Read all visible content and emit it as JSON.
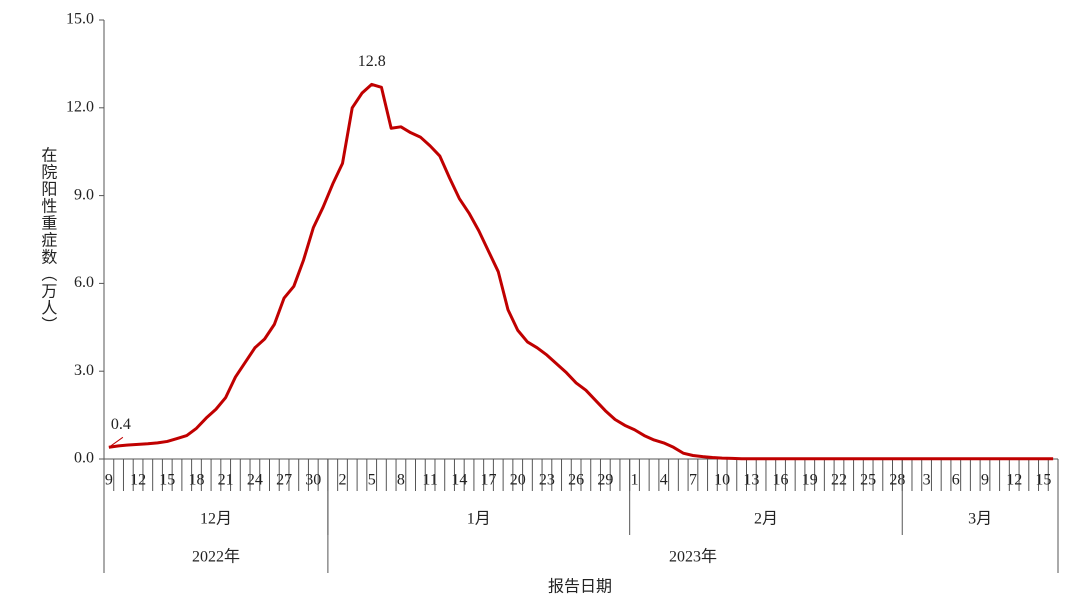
{
  "chart_data": {
    "type": "line",
    "y_label": "在院阳性重症数（万人）",
    "x_label": "报告日期",
    "x": [
      "2022-12-09",
      "2022-12-10",
      "2022-12-11",
      "2022-12-12",
      "2022-12-13",
      "2022-12-14",
      "2022-12-15",
      "2022-12-16",
      "2022-12-17",
      "2022-12-18",
      "2022-12-19",
      "2022-12-20",
      "2022-12-21",
      "2022-12-22",
      "2022-12-23",
      "2022-12-24",
      "2022-12-25",
      "2022-12-26",
      "2022-12-27",
      "2022-12-28",
      "2022-12-29",
      "2022-12-30",
      "2022-12-31",
      "2023-01-01",
      "2023-01-02",
      "2023-01-03",
      "2023-01-04",
      "2023-01-05",
      "2023-01-06",
      "2023-01-07",
      "2023-01-08",
      "2023-01-09",
      "2023-01-10",
      "2023-01-11",
      "2023-01-12",
      "2023-01-13",
      "2023-01-14",
      "2023-01-15",
      "2023-01-16",
      "2023-01-17",
      "2023-01-18",
      "2023-01-19",
      "2023-01-20",
      "2023-01-21",
      "2023-01-22",
      "2023-01-23",
      "2023-01-24",
      "2023-01-25",
      "2023-01-26",
      "2023-01-27",
      "2023-01-28",
      "2023-01-29",
      "2023-01-30",
      "2023-01-31",
      "2023-02-01",
      "2023-02-02",
      "2023-02-03",
      "2023-02-04",
      "2023-02-05",
      "2023-02-06",
      "2023-02-07",
      "2023-02-08",
      "2023-02-09",
      "2023-02-10",
      "2023-02-11",
      "2023-02-12",
      "2023-02-13",
      "2023-02-14",
      "2023-02-15",
      "2023-02-16",
      "2023-02-17",
      "2023-02-18",
      "2023-02-19",
      "2023-02-20",
      "2023-02-21",
      "2023-02-22",
      "2023-02-23",
      "2023-02-24",
      "2023-02-25",
      "2023-02-26",
      "2023-02-27",
      "2023-02-28",
      "2023-03-01",
      "2023-03-02",
      "2023-03-03",
      "2023-03-04",
      "2023-03-05",
      "2023-03-06",
      "2023-03-07",
      "2023-03-08",
      "2023-03-09",
      "2023-03-10",
      "2023-03-11",
      "2023-03-12",
      "2023-03-13",
      "2023-03-14",
      "2023-03-15",
      "2023-03-16"
    ],
    "series": [
      {
        "color": "#c00000",
        "values": [
          0.4,
          0.45,
          0.48,
          0.5,
          0.52,
          0.55,
          0.6,
          0.7,
          0.8,
          1.05,
          1.4,
          1.7,
          2.1,
          2.8,
          3.3,
          3.8,
          4.1,
          4.6,
          5.5,
          5.9,
          6.8,
          7.9,
          8.6,
          9.4,
          10.1,
          12.0,
          12.5,
          12.8,
          12.7,
          11.3,
          11.35,
          11.15,
          11.0,
          10.7,
          10.35,
          9.6,
          8.9,
          8.4,
          7.8,
          7.1,
          6.4,
          5.1,
          4.4,
          4.0,
          3.8,
          3.55,
          3.25,
          2.95,
          2.6,
          2.35,
          2.0,
          1.65,
          1.35,
          1.15,
          1.0,
          0.8,
          0.65,
          0.55,
          0.4,
          0.2,
          0.12,
          0.08,
          0.05,
          0.03,
          0.02,
          0.01,
          0.01,
          0.01,
          0.01,
          0.01,
          0.01,
          0.01,
          0.01,
          0.01,
          0.01,
          0.01,
          0.01,
          0.01,
          0.01,
          0.01,
          0.01,
          0.01,
          0.01,
          0.01,
          0.01,
          0.01,
          0.01,
          0.01,
          0.01,
          0.01,
          0.01,
          0.01,
          0.01,
          0.01,
          0.01,
          0.01,
          0.01,
          0.01
        ],
        "value_labels": [
          "0.4",
          null,
          null,
          null,
          null,
          null,
          null,
          null,
          null,
          null,
          null,
          null,
          null,
          null,
          null,
          null,
          null,
          null,
          null,
          null,
          null,
          null,
          null,
          null,
          null,
          null,
          null,
          "12.8",
          null,
          null,
          null,
          null,
          null,
          null,
          null,
          null,
          null,
          null,
          null,
          null,
          null,
          null,
          null,
          null,
          null,
          null,
          null,
          null,
          null,
          null,
          null,
          null,
          null,
          null,
          null,
          null,
          null,
          null,
          null,
          null,
          null,
          null,
          null,
          null,
          null,
          null,
          null,
          null,
          null,
          null,
          null,
          null,
          null,
          null,
          null,
          null,
          null,
          null,
          null,
          null,
          null,
          null,
          null,
          null,
          null,
          null,
          null,
          null,
          null,
          null,
          null,
          null,
          null,
          null,
          null,
          null,
          null,
          null
        ]
      }
    ],
    "xticks": [
      {
        "value": "2022-12-09",
        "label": "9"
      },
      {
        "value": "2022-12-12",
        "label": "12"
      },
      {
        "value": "2022-12-15",
        "label": "15"
      },
      {
        "value": "2022-12-18",
        "label": "18"
      },
      {
        "value": "2022-12-21",
        "label": "21"
      },
      {
        "value": "2022-12-24",
        "label": "24"
      },
      {
        "value": "2022-12-27",
        "label": "27"
      },
      {
        "value": "2022-12-30",
        "label": "30"
      },
      {
        "value": "2023-01-02",
        "label": "2"
      },
      {
        "value": "2023-01-05",
        "label": "5"
      },
      {
        "value": "2023-01-08",
        "label": "8"
      },
      {
        "value": "2023-01-11",
        "label": "11"
      },
      {
        "value": "2023-01-14",
        "label": "14"
      },
      {
        "value": "2023-01-17",
        "label": "17"
      },
      {
        "value": "2023-01-20",
        "label": "20"
      },
      {
        "value": "2023-01-23",
        "label": "23"
      },
      {
        "value": "2023-01-26",
        "label": "26"
      },
      {
        "value": "2023-01-29",
        "label": "29"
      },
      {
        "value": "2023-02-01",
        "label": "1"
      },
      {
        "value": "2023-02-04",
        "label": "4"
      },
      {
        "value": "2023-02-07",
        "label": "7"
      },
      {
        "value": "2023-02-10",
        "label": "10"
      },
      {
        "value": "2023-02-13",
        "label": "13"
      },
      {
        "value": "2023-02-16",
        "label": "16"
      },
      {
        "value": "2023-02-19",
        "label": "19"
      },
      {
        "value": "2023-02-22",
        "label": "22"
      },
      {
        "value": "2023-02-25",
        "label": "25"
      },
      {
        "value": "2023-02-28",
        "label": "28"
      },
      {
        "value": "2023-03-03",
        "label": "3"
      },
      {
        "value": "2023-03-06",
        "label": "6"
      },
      {
        "value": "2023-03-09",
        "label": "9"
      },
      {
        "value": "2023-03-12",
        "label": "12"
      },
      {
        "value": "2023-03-15",
        "label": "15"
      }
    ],
    "month_labels": [
      {
        "value": "2022-12",
        "label": "12月"
      },
      {
        "value": "2023-01",
        "label": "1月"
      },
      {
        "value": "2023-02",
        "label": "2月"
      },
      {
        "value": "2023-03",
        "label": "3月"
      }
    ],
    "year_labels": [
      {
        "value": "2022",
        "label": "2022年"
      },
      {
        "value": "2023",
        "label": "2023年"
      }
    ],
    "ylim": [
      0,
      15
    ],
    "yticks": [
      {
        "value": 0,
        "label": "0.0"
      },
      {
        "value": 3,
        "label": "3.0"
      },
      {
        "value": 6,
        "label": "6.0"
      },
      {
        "value": 9,
        "label": "9.0"
      },
      {
        "value": 12,
        "label": "12.0"
      },
      {
        "value": 15,
        "label": "15.0"
      }
    ],
    "grid": false
  }
}
